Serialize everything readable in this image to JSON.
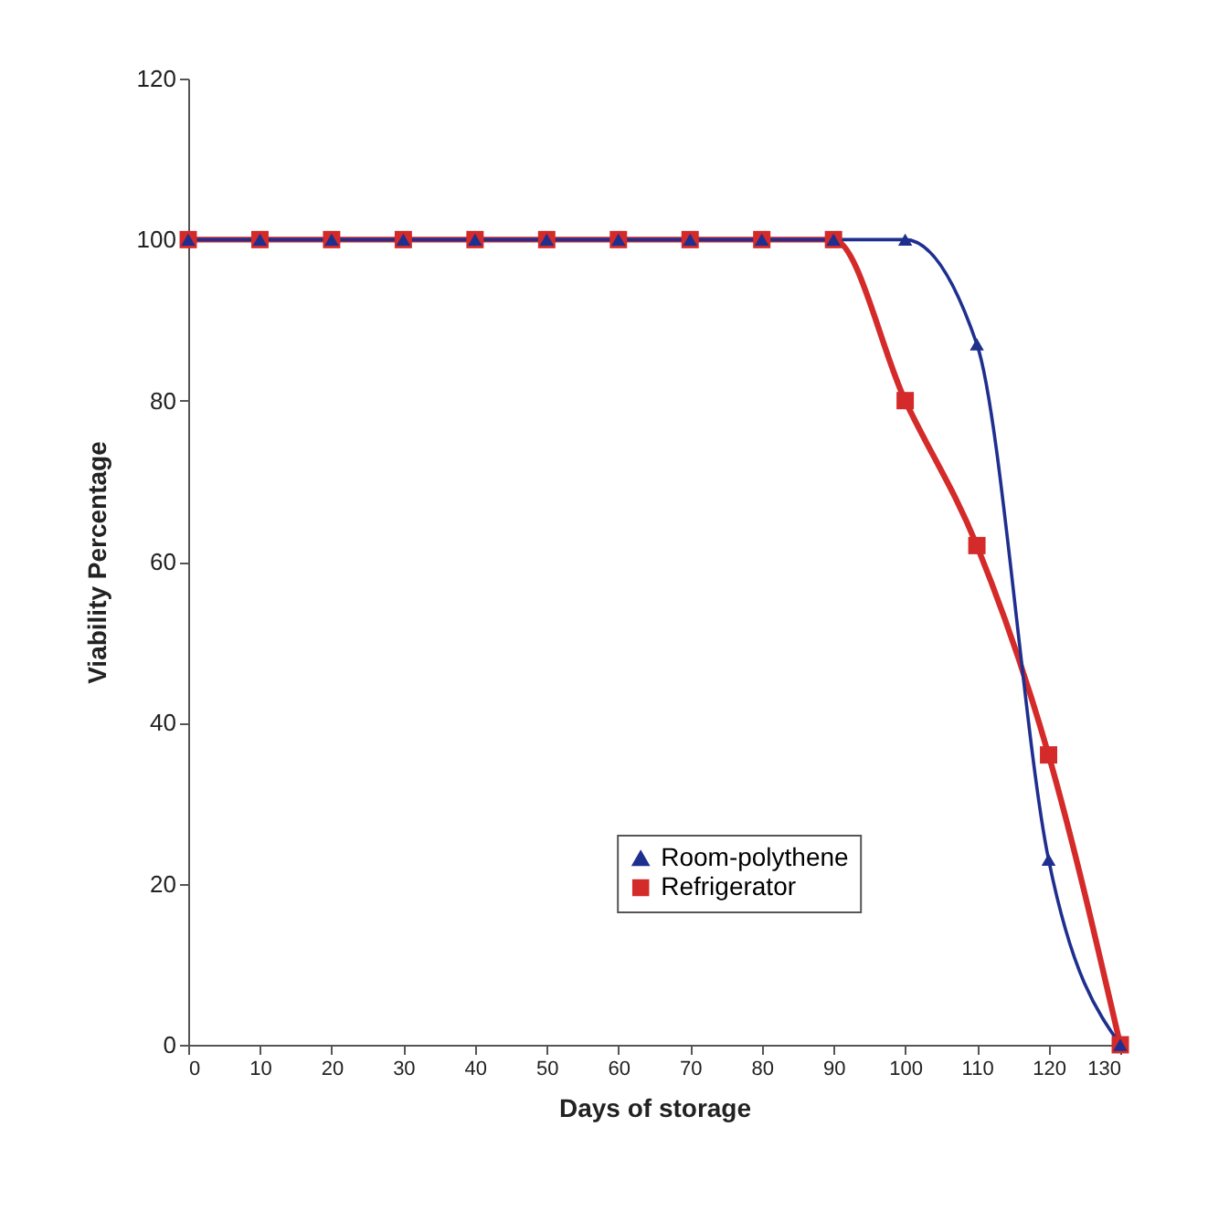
{
  "chart_data": {
    "type": "line",
    "xlabel": "Days of storage",
    "ylabel": "Viability Percentage",
    "x": [
      0,
      10,
      20,
      30,
      40,
      50,
      60,
      70,
      80,
      90,
      100,
      110,
      120,
      130
    ],
    "series": [
      {
        "name": "Room-polythene",
        "color": "#1f2f8f",
        "marker": "triangle",
        "values": [
          100,
          100,
          100,
          100,
          100,
          100,
          100,
          100,
          100,
          100,
          100,
          87,
          23,
          0
        ]
      },
      {
        "name": "Refrigerator",
        "color": "#d42a2a",
        "marker": "square",
        "values": [
          100,
          100,
          100,
          100,
          100,
          100,
          100,
          100,
          100,
          100,
          80,
          62,
          36,
          0
        ]
      }
    ],
    "xlim": [
      0,
      130
    ],
    "xticks": [
      0,
      10,
      20,
      30,
      40,
      50,
      60,
      70,
      80,
      90,
      100,
      110,
      120,
      130
    ],
    "ylim": [
      0,
      120
    ],
    "yticks": [
      0,
      20,
      40,
      60,
      80,
      100,
      120
    ],
    "legend": "bottom",
    "line_style": "solid"
  }
}
